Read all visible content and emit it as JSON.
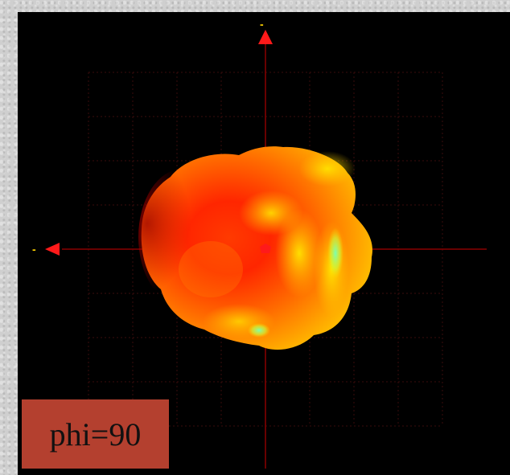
{
  "label": {
    "text": "phi=90"
  },
  "axes": {
    "top_marker": "-",
    "left_marker": "-"
  },
  "colors": {
    "background": "#000000",
    "axis": "#8a0000",
    "arrow": "#ff1a1a",
    "grid": "#3a0b0b",
    "label_bg": "#b4402f",
    "marker_text": "#ffd200"
  }
}
